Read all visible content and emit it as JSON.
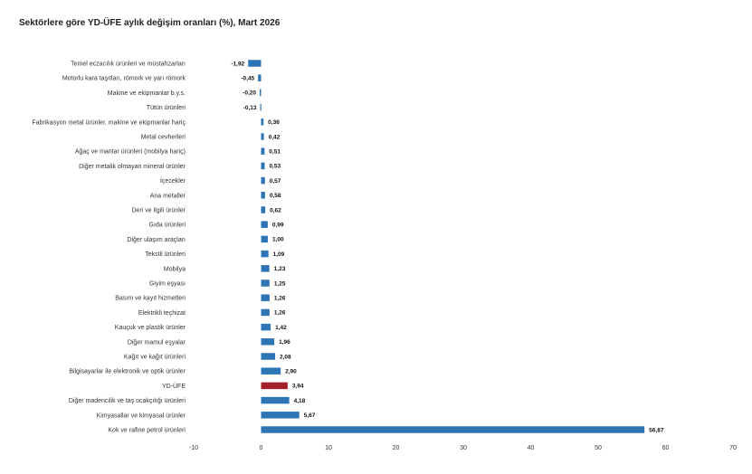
{
  "chart_data": {
    "type": "bar",
    "orientation": "horizontal",
    "title": "Sektörlere göre YD-ÜFE aylık değişim oranları (%), Mart 2026",
    "xlabel": "",
    "ylabel": "",
    "xlim": [
      -10,
      70
    ],
    "xticks": [
      "-10",
      "0",
      "10",
      "20",
      "30",
      "40",
      "50",
      "60",
      "70"
    ],
    "grid": false,
    "legend": "none",
    "colors": {
      "default": "#2e75b6",
      "highlight": "#a5202a"
    },
    "highlight_category": "YD-ÜFE",
    "categories": [
      "Temel eczacılık ürünleri ve müstahzarları",
      "Motorlu kara taşıtları, römork ve yarı römork",
      "Makine ve ekipmanlar b.y.s.",
      "Tütün ürünleri",
      "Fabrikasyon metal ürünler, makine ve ekipmanlar hariç",
      "Metal cevherleri",
      "Ağaç ve mantar ürünleri (mobilya hariç)",
      "Diğer metalik olmayan mineral ürünler",
      "İçecekler",
      "Ana metaller",
      "Deri ve ilgili ürünler",
      "Gıda ürünleri",
      "Diğer ulaşım araçları",
      "Tekstil ürünleri",
      "Mobilya",
      "Giyim eşyası",
      "Basım ve kayıt hizmetleri",
      "Elektrikli teçhizat",
      "Kauçuk ve plastik ürünler",
      "Diğer mamul eşyalar",
      "Kağıt ve kağıt ürünleri",
      "Bilgisayarlar ile elektronik ve optik ürünler",
      "YD-ÜFE",
      "Diğer madencilik ve taş ocakçılığı ürünleri",
      "Kimyasallar ve kimyasal ürünler",
      "Kok ve rafine petrol ürünleri"
    ],
    "values": [
      -1.92,
      -0.45,
      -0.2,
      -0.13,
      0.36,
      0.42,
      0.51,
      0.53,
      0.57,
      0.58,
      0.62,
      0.99,
      1.0,
      1.09,
      1.23,
      1.25,
      1.26,
      1.26,
      1.42,
      1.96,
      2.08,
      2.9,
      3.94,
      4.18,
      5.67,
      56.87
    ],
    "value_labels": [
      "-1,92",
      "-0,45",
      "-0,20",
      "-0,13",
      "0,36",
      "0,42",
      "0,51",
      "0,53",
      "0,57",
      "0,58",
      "0,62",
      "0,99",
      "1,00",
      "1,09",
      "1,23",
      "1,25",
      "1,26",
      "1,26",
      "1,42",
      "1,96",
      "2,08",
      "2,90",
      "3,94",
      "4,18",
      "5,67",
      "56,87"
    ]
  }
}
